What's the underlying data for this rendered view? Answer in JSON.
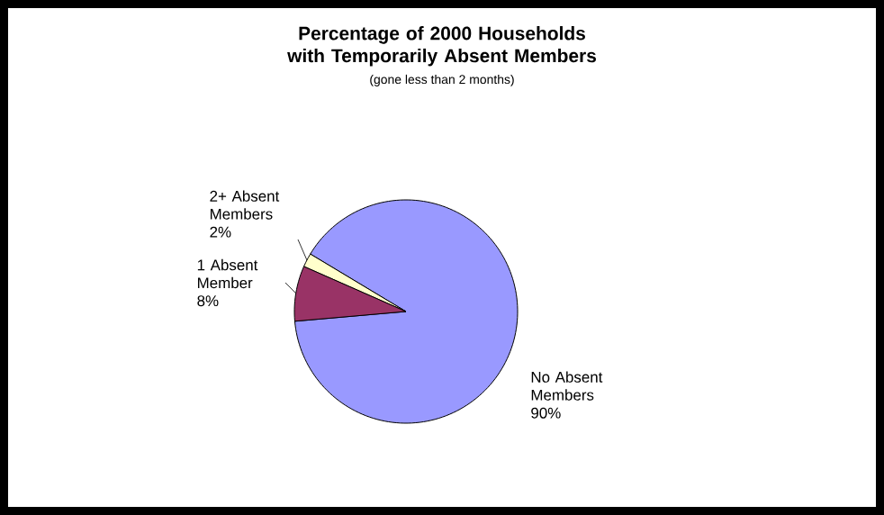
{
  "chart_data": {
    "type": "pie",
    "title": "Percentage of 2000 Households with Temporarily Absent Members",
    "subtitle": "(gone less than 2 months)",
    "categories": [
      "No Absent Members",
      "2+ Absent Members",
      "1 Absent Member"
    ],
    "values": [
      90,
      2,
      8
    ],
    "value_labels": [
      "90%",
      "2%",
      "8%"
    ],
    "colors": [
      "#9999ff",
      "#ffffcc",
      "#993366"
    ]
  }
}
